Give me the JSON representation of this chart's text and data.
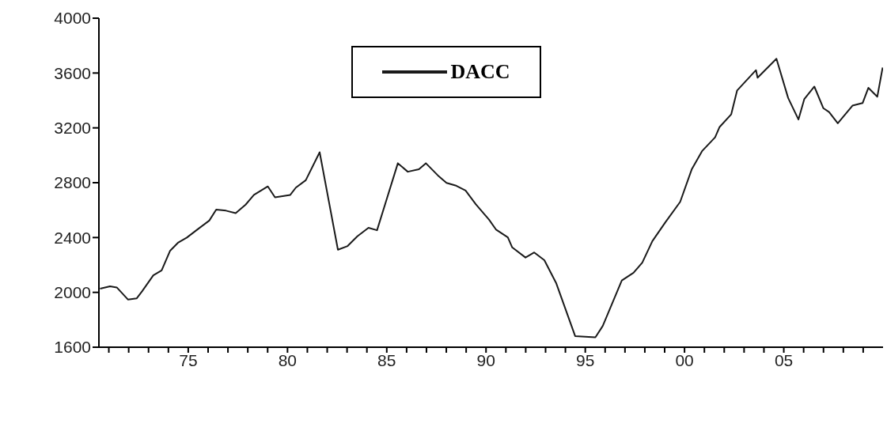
{
  "chart_data": {
    "type": "line",
    "x": [
      1970.56,
      1971.06,
      1971.4,
      1971.97,
      1972.4,
      1972.68,
      1973.24,
      1973.66,
      1974.08,
      1974.5,
      1974.93,
      1975.49,
      1976.06,
      1976.41,
      1976.9,
      1977.39,
      1977.89,
      1978.31,
      1979.01,
      1979.37,
      1980.14,
      1980.42,
      1980.92,
      1981.62,
      1982.54,
      1983.03,
      1983.52,
      1984.08,
      1984.51,
      1985.56,
      1986.06,
      1986.62,
      1986.97,
      1987.57,
      1988.01,
      1988.46,
      1988.97,
      1989.49,
      1990.15,
      1990.51,
      1991.1,
      1991.32,
      1991.99,
      1992.43,
      1992.94,
      1993.53,
      1994.49,
      1995.51,
      1995.88,
      1996.84,
      1997.43,
      1997.87,
      1998.38,
      1999.04,
      1999.78,
      2000.37,
      2000.88,
      2001.54,
      2001.76,
      2002.35,
      2002.65,
      2003.6,
      2003.68,
      2004.63,
      2005.22,
      2005.74,
      2006.03,
      2006.54,
      2006.99,
      2007.28,
      2007.72,
      2008.46,
      2008.97,
      2009.26,
      2009.71,
      2009.98
    ],
    "series": [
      {
        "name": "DACC",
        "color": "#1a1a1a",
        "values": [
          2027,
          2044,
          2036,
          1947,
          1956,
          2009,
          2124,
          2160,
          2302,
          2364,
          2400,
          2462,
          2524,
          2604,
          2596,
          2578,
          2640,
          2711,
          2773,
          2693,
          2711,
          2764,
          2818,
          3022,
          2311,
          2338,
          2409,
          2471,
          2453,
          2942,
          2880,
          2898,
          2942,
          2854,
          2799,
          2780,
          2743,
          2642,
          2531,
          2457,
          2401,
          2328,
          2254,
          2291,
          2235,
          2069,
          1681,
          1672,
          1755,
          2087,
          2143,
          2217,
          2374,
          2512,
          2660,
          2900,
          3030,
          3131,
          3205,
          3298,
          3473,
          3621,
          3566,
          3704,
          3418,
          3261,
          3409,
          3501,
          3344,
          3316,
          3233,
          3362,
          3381,
          3492,
          3427,
          3640
        ]
      }
    ],
    "xlim": [
      1970.5,
      2010
    ],
    "xticks": [
      {
        "value": 1971,
        "label": null
      },
      {
        "value": 1972,
        "label": null
      },
      {
        "value": 1973,
        "label": null
      },
      {
        "value": 1974,
        "label": null
      },
      {
        "value": 1975,
        "label": "75"
      },
      {
        "value": 1976,
        "label": null
      },
      {
        "value": 1977,
        "label": null
      },
      {
        "value": 1978,
        "label": null
      },
      {
        "value": 1979,
        "label": null
      },
      {
        "value": 1980,
        "label": "80"
      },
      {
        "value": 1981,
        "label": null
      },
      {
        "value": 1982,
        "label": null
      },
      {
        "value": 1983,
        "label": null
      },
      {
        "value": 1984,
        "label": null
      },
      {
        "value": 1985,
        "label": "85"
      },
      {
        "value": 1986,
        "label": null
      },
      {
        "value": 1987,
        "label": null
      },
      {
        "value": 1988,
        "label": null
      },
      {
        "value": 1989,
        "label": null
      },
      {
        "value": 1990,
        "label": "90"
      },
      {
        "value": 1991,
        "label": null
      },
      {
        "value": 1992,
        "label": null
      },
      {
        "value": 1993,
        "label": null
      },
      {
        "value": 1994,
        "label": null
      },
      {
        "value": 1995,
        "label": "95"
      },
      {
        "value": 1996,
        "label": null
      },
      {
        "value": 1997,
        "label": null
      },
      {
        "value": 1998,
        "label": null
      },
      {
        "value": 1999,
        "label": null
      },
      {
        "value": 2000,
        "label": "00"
      },
      {
        "value": 2001,
        "label": null
      },
      {
        "value": 2002,
        "label": null
      },
      {
        "value": 2003,
        "label": null
      },
      {
        "value": 2004,
        "label": null
      },
      {
        "value": 2005,
        "label": "05"
      },
      {
        "value": 2006,
        "label": null
      },
      {
        "value": 2007,
        "label": null
      },
      {
        "value": 2008,
        "label": null
      },
      {
        "value": 2009,
        "label": null
      }
    ],
    "ylim": [
      1600,
      4000
    ],
    "yticks": [
      1600,
      2000,
      2400,
      2800,
      3200,
      3600,
      4000
    ],
    "grid": false,
    "legend": "top",
    "marker": "none",
    "line_style": "solid"
  }
}
